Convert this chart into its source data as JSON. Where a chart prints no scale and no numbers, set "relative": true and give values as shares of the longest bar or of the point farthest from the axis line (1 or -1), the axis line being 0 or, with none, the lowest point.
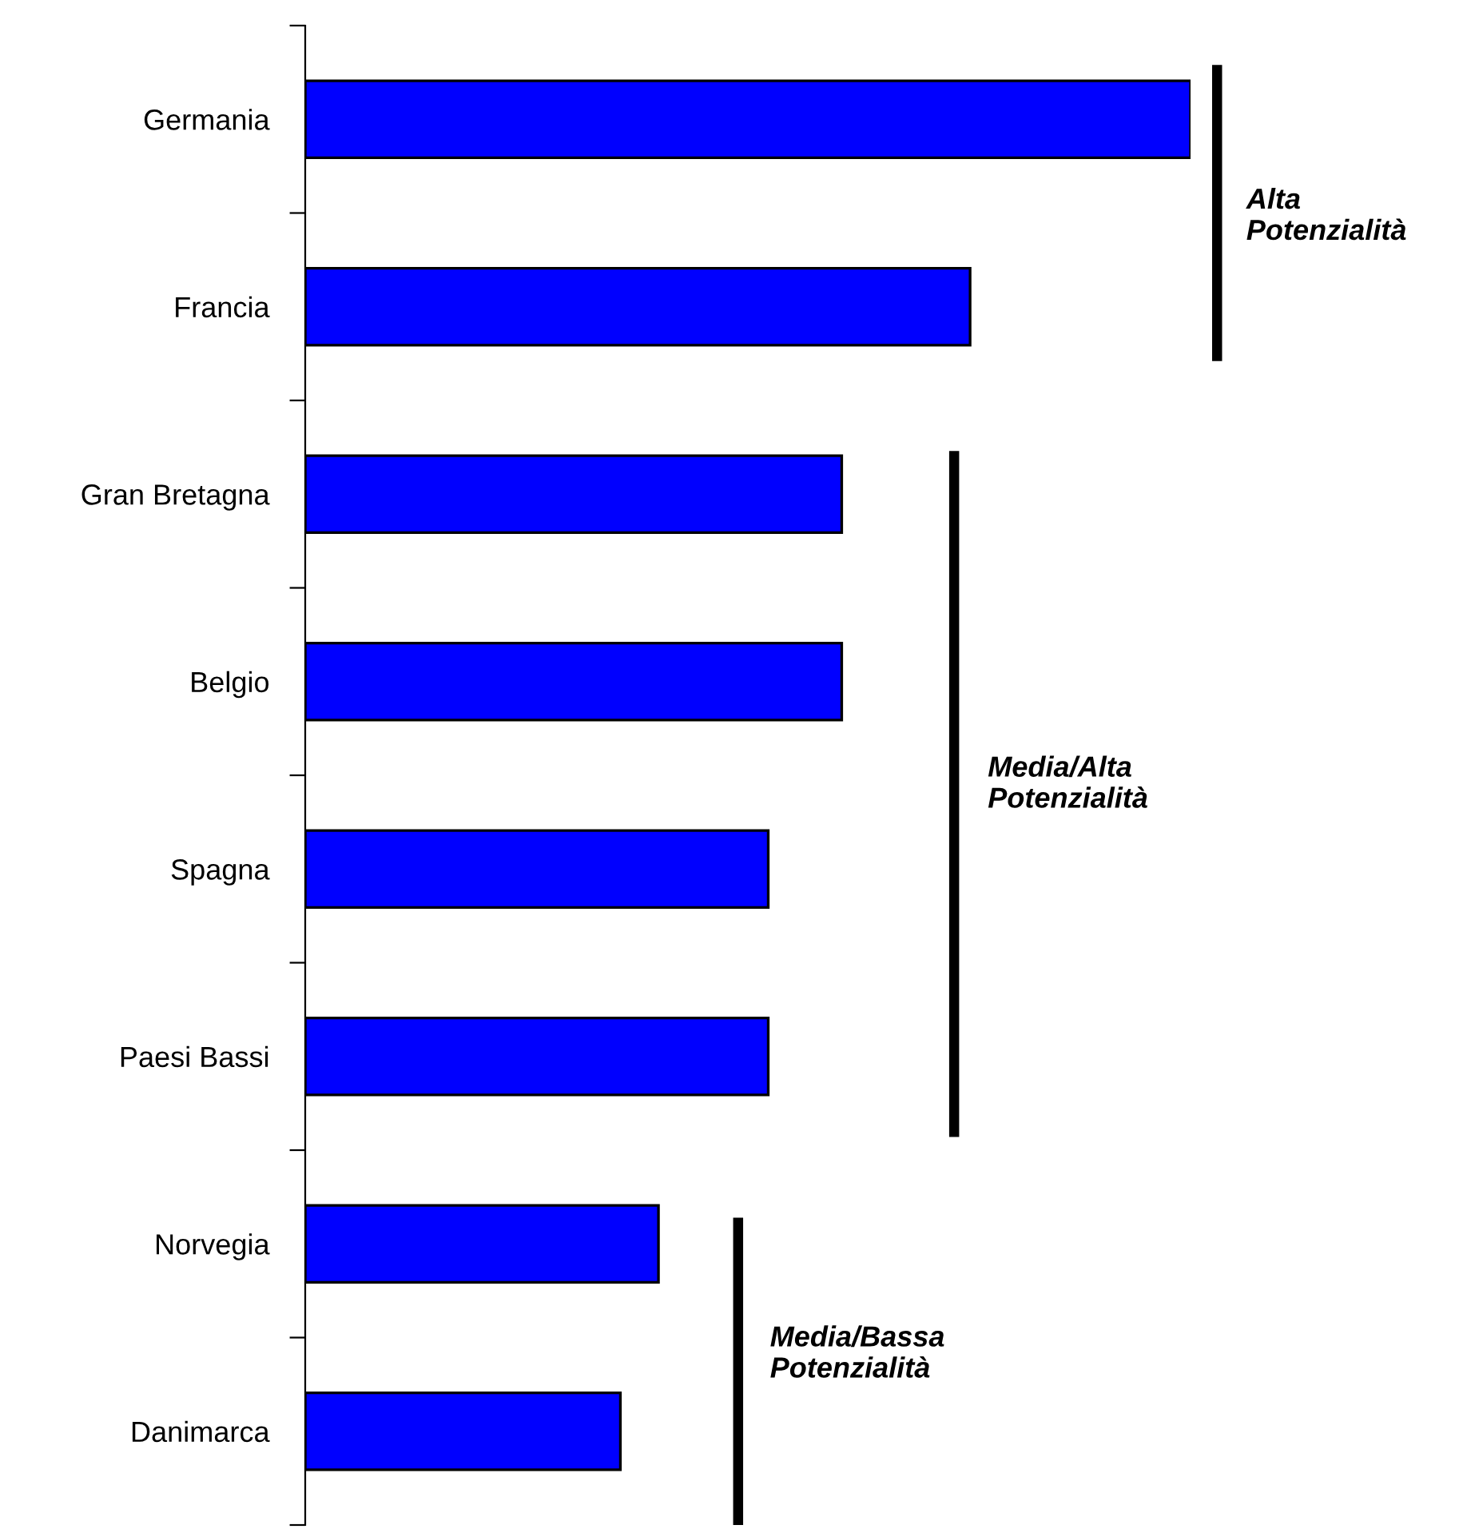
{
  "chart_data": {
    "type": "bar",
    "orientation": "horizontal",
    "relative": true,
    "categories": [
      "Germania",
      "Francia",
      "Gran Bretagna",
      "Belgio",
      "Spagna",
      "Paesi Bassi",
      "Norvegia",
      "Danimarca"
    ],
    "values": [
      1,
      0.751,
      0.606,
      0.606,
      0.523,
      0.523,
      0.399,
      0.356
    ],
    "color": "#0000ff",
    "annotations": [
      "Alta Potenzialità",
      "Media/Alta Potenzialità",
      "Media/Bassa Potenzialità"
    ],
    "grid": false,
    "legend": false
  }
}
